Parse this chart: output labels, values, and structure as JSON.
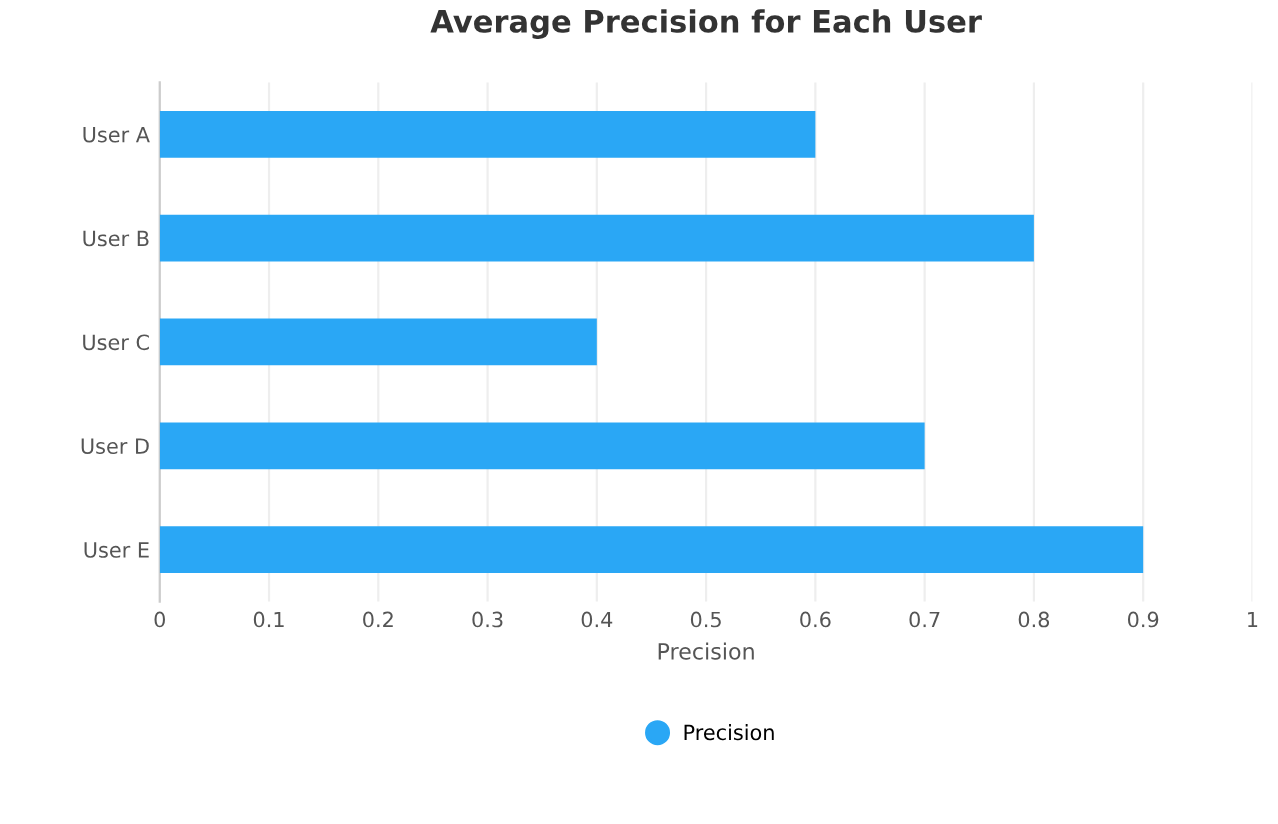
{
  "chart_data": {
    "type": "bar",
    "orientation": "horizontal",
    "title": "Average Precision for Each User",
    "xlabel": "Precision",
    "categories": [
      "User A",
      "User B",
      "User C",
      "User D",
      "User E"
    ],
    "series": [
      {
        "name": "Precision",
        "color": "#2aa7f5",
        "values": [
          0.6,
          0.8,
          0.4,
          0.7,
          0.9
        ]
      }
    ],
    "xlim": [
      0,
      1
    ],
    "xticks": [
      0,
      0.1,
      0.2,
      0.3,
      0.4,
      0.5,
      0.6,
      0.7,
      0.8,
      0.9,
      1
    ],
    "grid": "x",
    "legend": "bottom"
  }
}
